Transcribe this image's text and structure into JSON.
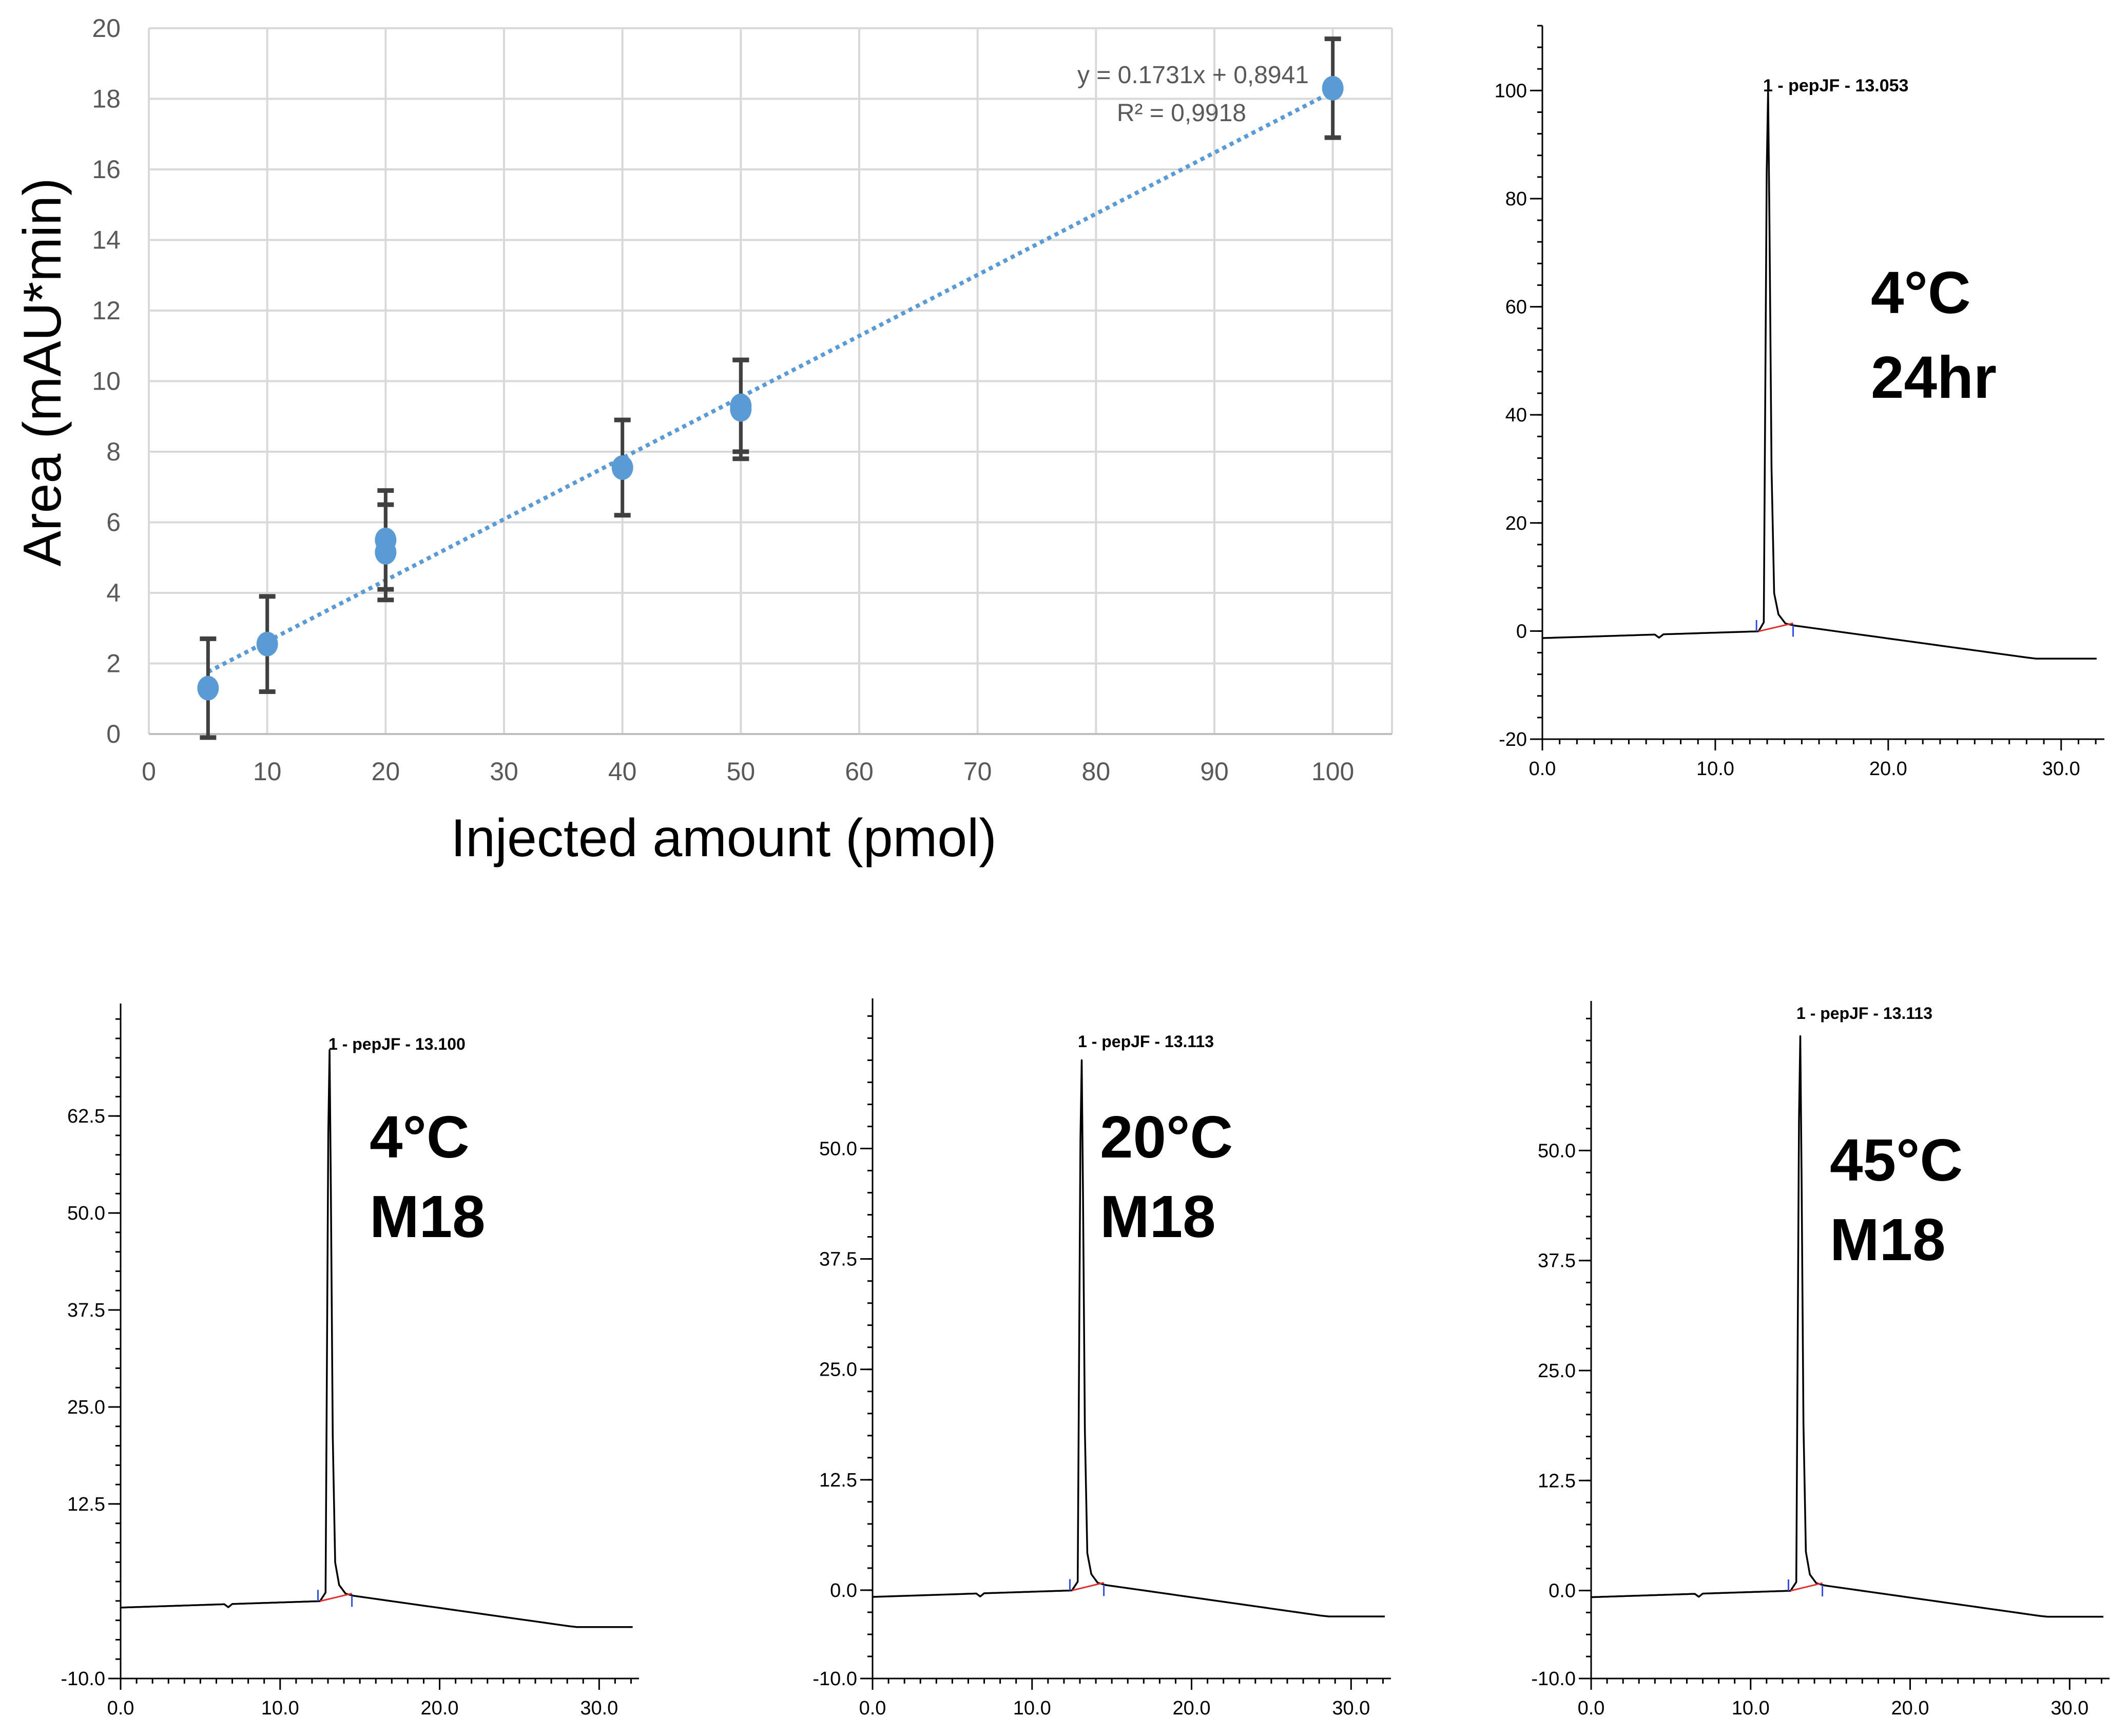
{
  "chart_data": [
    {
      "type": "scatter",
      "xlabel": "Injected amount (pmol)",
      "ylabel": "Area (mAU*min)",
      "xlim": [
        0,
        105
      ],
      "ylim": [
        0,
        20
      ],
      "xticks": [
        0,
        10,
        20,
        30,
        40,
        50,
        60,
        70,
        80,
        90,
        100
      ],
      "yticks": [
        0,
        2,
        4,
        6,
        8,
        10,
        12,
        14,
        16,
        18,
        20
      ],
      "grid": true,
      "series": [
        {
          "name": "Area",
          "points": [
            {
              "x": 5,
              "y": 1.3,
              "err": 1.4
            },
            {
              "x": 10,
              "y": 2.55,
              "err": 1.35
            },
            {
              "x": 20,
              "y": 5.5,
              "err": 1.4
            },
            {
              "x": 20,
              "y": 5.15,
              "err": 1.35
            },
            {
              "x": 40,
              "y": 7.55,
              "err": 1.35
            },
            {
              "x": 50,
              "y": 9.2,
              "err": 1.4
            },
            {
              "x": 50,
              "y": 9.3,
              "err": 1.3
            },
            {
              "x": 100,
              "y": 18.3,
              "err": 1.4
            }
          ],
          "color": "#5b9bd5"
        }
      ],
      "trendline": {
        "slope": 0.1731,
        "intercept": 0.8941,
        "x_range": [
          5,
          100
        ],
        "color": "#5b9bd5"
      },
      "annotations": {
        "equation": "y = 0.1731x + 0,8941",
        "r2": "R² = 0,9918"
      }
    },
    {
      "type": "line",
      "title": "1 - pepJF - 13.053",
      "condition_line1": "4°C",
      "condition_line2": "24hr",
      "xlim": [
        0,
        32.5
      ],
      "ylim": [
        -20,
        112
      ],
      "xticks": [
        0,
        10,
        20,
        30
      ],
      "xtick_labels": [
        "0.0",
        "10.0",
        "20.0",
        "30.0"
      ],
      "yticks": [
        -20,
        0,
        20,
        40,
        60,
        80,
        100
      ],
      "ytick_labels": [
        "-20",
        "0",
        "20",
        "40",
        "60",
        "80",
        "100"
      ],
      "peak_time": 13.053,
      "peak_height": 100
    },
    {
      "type": "line",
      "title": "1 - pepJF - 13.100",
      "condition_line1": "4°C",
      "condition_line2": "M18",
      "xlim": [
        0,
        32.5
      ],
      "ylim": [
        -10,
        77
      ],
      "xticks": [
        0,
        10,
        20,
        30
      ],
      "xtick_labels": [
        "0.0",
        "10.0",
        "20.0",
        "30.0"
      ],
      "yticks": [
        -10,
        12.5,
        25,
        37.5,
        50,
        62.5
      ],
      "ytick_labels": [
        "-10.0",
        "12.5",
        "25.0",
        "37.5",
        "50.0",
        "62.5"
      ],
      "peak_time": 13.1,
      "peak_height": 71
    },
    {
      "type": "line",
      "title": "1 - pepJF - 13.113",
      "condition_line1": "20°C",
      "condition_line2": "M18",
      "xlim": [
        0,
        32.5
      ],
      "ylim": [
        -10,
        67
      ],
      "xticks": [
        0,
        10,
        20,
        30
      ],
      "xtick_labels": [
        "0.0",
        "10.0",
        "20.0",
        "30.0"
      ],
      "yticks": [
        -10,
        0,
        12.5,
        25,
        37.5,
        50
      ],
      "ytick_labels": [
        "-10.0",
        "0.0",
        "12.5",
        "25.0",
        "37.5",
        "50.0"
      ],
      "peak_time": 13.113,
      "peak_height": 60
    },
    {
      "type": "line",
      "title": "1 - pepJF - 13.113",
      "condition_line1": "45°C",
      "condition_line2": "M18",
      "xlim": [
        0,
        32.5
      ],
      "ylim": [
        -10,
        67
      ],
      "xticks": [
        0,
        10,
        20,
        30
      ],
      "xtick_labels": [
        "0.0",
        "10.0",
        "20.0",
        "30.0"
      ],
      "yticks": [
        -10,
        0,
        12.5,
        25,
        37.5,
        50
      ],
      "ytick_labels": [
        "-10.0",
        "0.0",
        "12.5",
        "25.0",
        "37.5",
        "50.0"
      ],
      "peak_time": 13.113,
      "peak_height": 63
    }
  ]
}
